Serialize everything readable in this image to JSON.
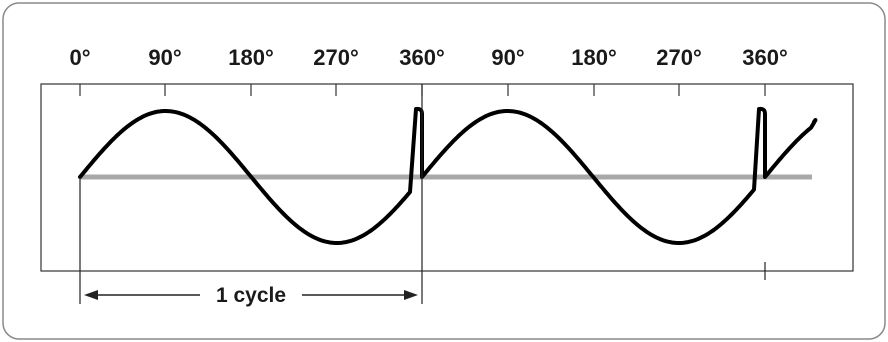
{
  "diagram": {
    "tick_labels": [
      "0°",
      "90°",
      "180°",
      "270°",
      "360°",
      "90°",
      "180°",
      "270°",
      "360°"
    ],
    "cycle_label": "1 cycle",
    "colors": {
      "frame": "#8a8a8a",
      "plot_border": "#333333",
      "axis": "#a8a8a8",
      "wave": "#000000",
      "text": "#1a1a1a"
    }
  }
}
